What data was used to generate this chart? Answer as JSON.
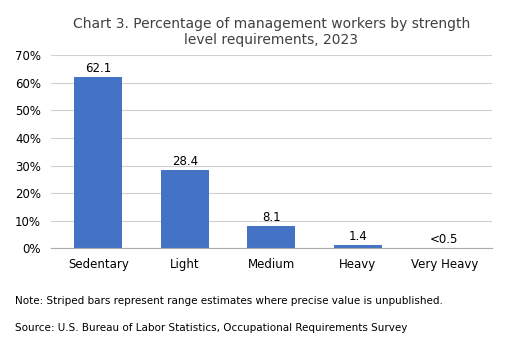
{
  "title": "Chart 3. Percentage of management workers by strength\nlevel requirements, 2023",
  "categories": [
    "Sedentary",
    "Light",
    "Medium",
    "Heavy",
    "Very Heavy"
  ],
  "values": [
    62.1,
    28.4,
    8.1,
    1.4,
    0.3
  ],
  "labels": [
    "62.1",
    "28.4",
    "8.1",
    "1.4",
    "<0.5"
  ],
  "bar_color": "#4472C4",
  "striped_index": 4,
  "ylim": [
    0,
    70
  ],
  "yticks": [
    0,
    10,
    20,
    30,
    40,
    50,
    60,
    70
  ],
  "ytick_labels": [
    "0%",
    "10%",
    "20%",
    "30%",
    "40%",
    "50%",
    "60%",
    "70%"
  ],
  "note_line1": "Note: Striped bars represent range estimates where precise value is unpublished.",
  "note_line2": "Source: U.S. Bureau of Labor Statistics, Occupational Requirements Survey",
  "background_color": "#ffffff",
  "grid_color": "#d0d0d0",
  "title_fontsize": 10,
  "label_fontsize": 8.5,
  "tick_fontsize": 8.5,
  "note_fontsize": 7.5,
  "title_color": "#404040"
}
